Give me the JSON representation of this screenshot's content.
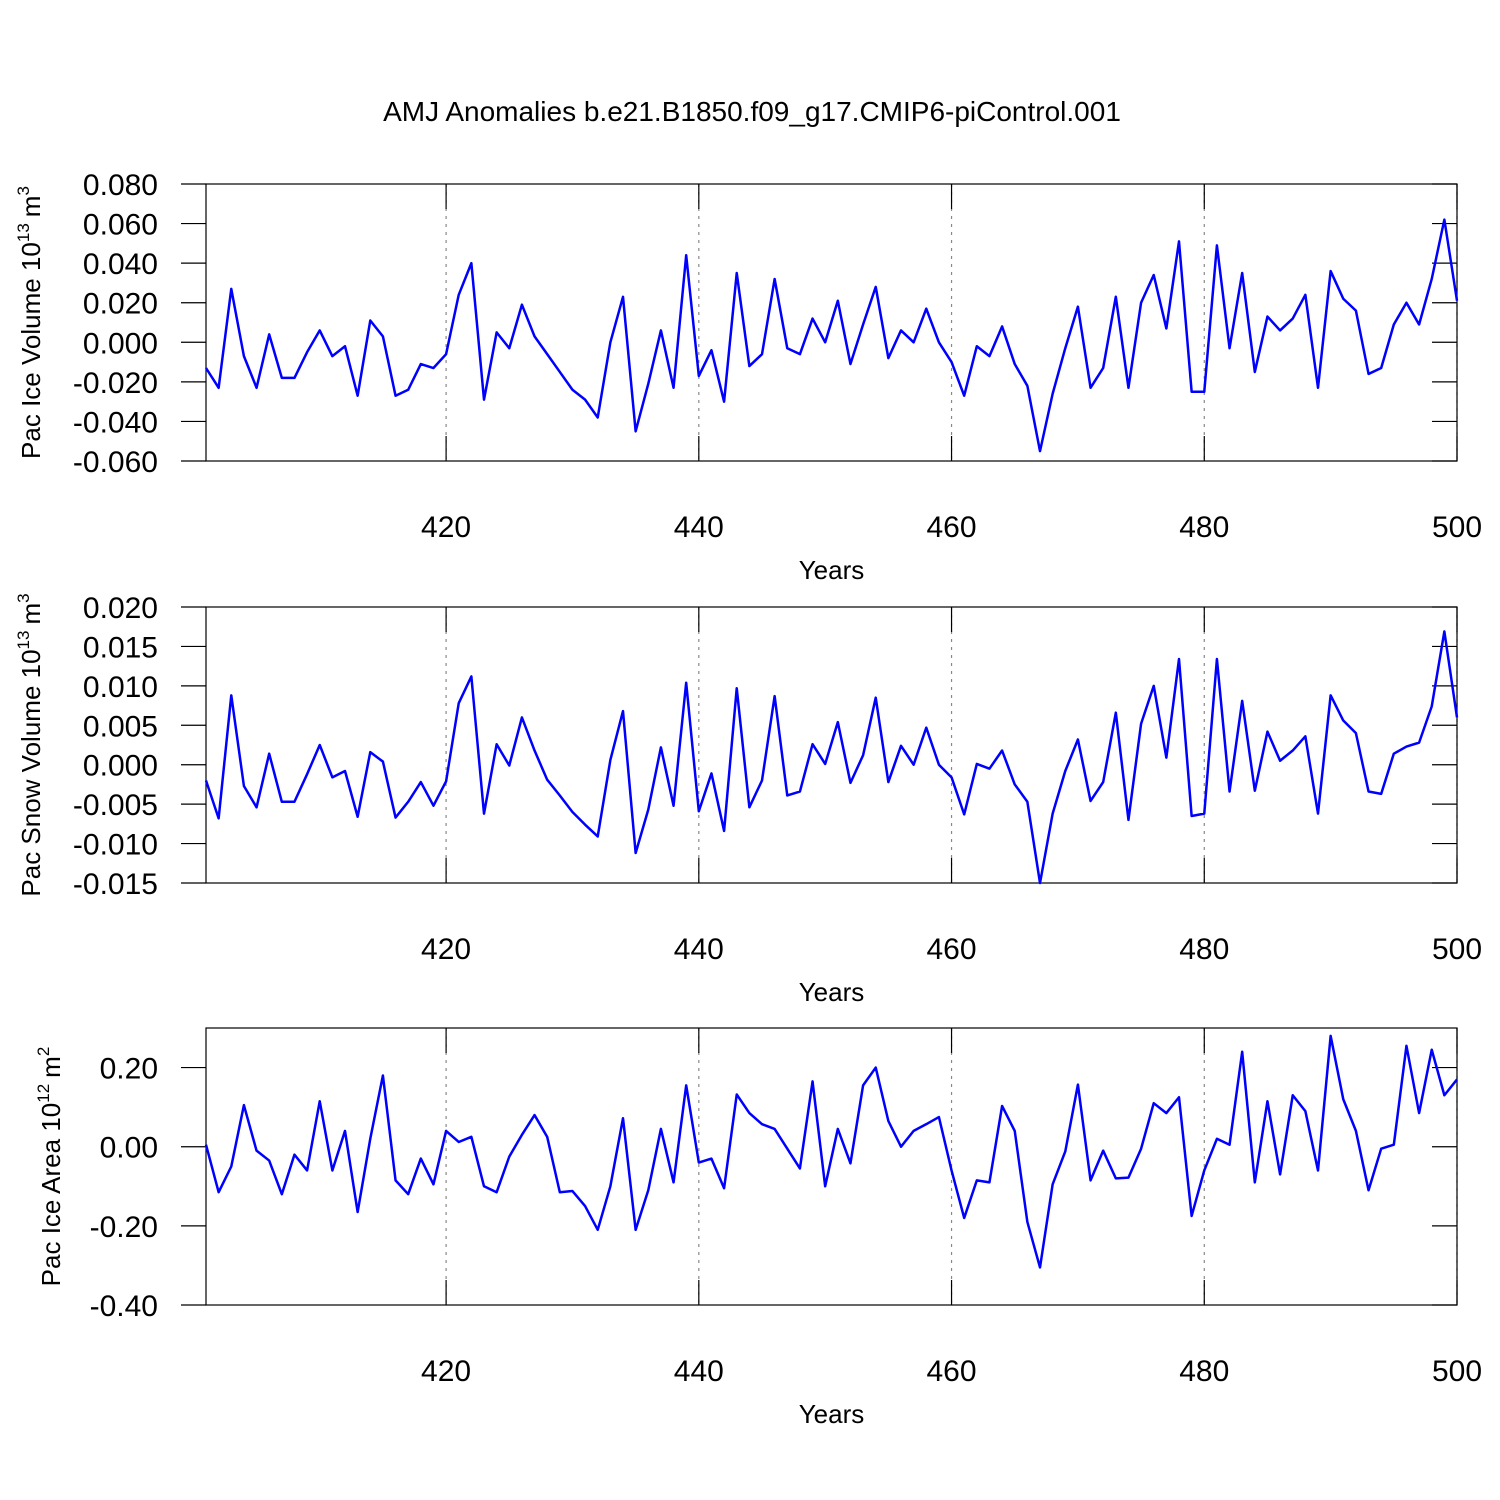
{
  "title": "AMJ Anomalies b.e21.B1850.f09_g17.CMIP6-piControl.001",
  "chart_data": [
    {
      "type": "line",
      "ylabel": "Pac Ice Volume 10",
      "ylabel_exp": "13",
      "ylabel_unit": "m",
      "ylabel_unit_exp": "3",
      "xlabel": "Years",
      "color": "#0000ff",
      "grid": "x",
      "xlim": [
        401,
        500
      ],
      "xticks": [
        420,
        440,
        460,
        480,
        500
      ],
      "ylim": [
        -0.06,
        0.08
      ],
      "yticks": [
        {
          "value": -0.06,
          "label": "-0.060"
        },
        {
          "value": -0.04,
          "label": "-0.040"
        },
        {
          "value": -0.02,
          "label": "-0.020"
        },
        {
          "value": 0,
          "label": "0.000"
        },
        {
          "value": 0.02,
          "label": "0.020"
        },
        {
          "value": 0.04,
          "label": "0.040"
        },
        {
          "value": 0.06,
          "label": "0.060"
        },
        {
          "value": 0.08,
          "label": "0.080"
        }
      ],
      "x": [
        401,
        402,
        403,
        404,
        405,
        406,
        407,
        408,
        409,
        410,
        411,
        412,
        413,
        414,
        415,
        416,
        417,
        418,
        419,
        420,
        421,
        422,
        423,
        424,
        425,
        426,
        427,
        428,
        429,
        430,
        431,
        432,
        433,
        434,
        435,
        436,
        437,
        438,
        439,
        440,
        441,
        442,
        443,
        444,
        445,
        446,
        447,
        448,
        449,
        450,
        451,
        452,
        453,
        454,
        455,
        456,
        457,
        458,
        459,
        460,
        461,
        462,
        463,
        464,
        465,
        466,
        467,
        468,
        469,
        470,
        471,
        472,
        473,
        474,
        475,
        476,
        477,
        478,
        479,
        480,
        481,
        482,
        483,
        484,
        485,
        486,
        487,
        488,
        489,
        490,
        491,
        492,
        493,
        494,
        495,
        496,
        497,
        498,
        499,
        500
      ],
      "values": [
        -0.013,
        -0.023,
        0.027,
        -0.007,
        -0.023,
        0.004,
        -0.018,
        -0.018,
        -0.005,
        0.006,
        -0.007,
        -0.002,
        -0.027,
        0.011,
        0.003,
        -0.027,
        -0.024,
        -0.011,
        -0.013,
        -0.006,
        0.024,
        0.04,
        -0.029,
        0.005,
        -0.003,
        0.019,
        0.003,
        -0.006,
        -0.015,
        -0.024,
        -0.029,
        -0.038,
        0.0,
        0.023,
        -0.045,
        -0.021,
        0.006,
        -0.023,
        0.044,
        -0.017,
        -0.004,
        -0.03,
        0.035,
        -0.012,
        -0.006,
        0.032,
        -0.003,
        -0.006,
        0.012,
        0.0,
        0.021,
        -0.011,
        0.009,
        0.028,
        -0.008,
        0.006,
        0.0,
        0.017,
        0.0,
        -0.01,
        -0.027,
        -0.002,
        -0.007,
        0.008,
        -0.011,
        -0.022,
        -0.055,
        -0.026,
        -0.003,
        0.018,
        -0.023,
        -0.013,
        0.023,
        -0.023,
        0.02,
        0.034,
        0.007,
        0.051,
        -0.025,
        -0.025,
        0.049,
        -0.003,
        0.035,
        -0.015,
        0.013,
        0.006,
        0.012,
        0.024,
        -0.023,
        0.036,
        0.022,
        0.016,
        -0.016,
        -0.013,
        0.009,
        0.02,
        0.009,
        0.032,
        0.062,
        0.021
      ]
    },
    {
      "type": "line",
      "ylabel": "Pac Snow Volume 10",
      "ylabel_exp": "13",
      "ylabel_unit": "m",
      "ylabel_unit_exp": "3",
      "xlabel": "Years",
      "color": "#0000ff",
      "grid": "x",
      "xlim": [
        401,
        500
      ],
      "xticks": [
        420,
        440,
        460,
        480,
        500
      ],
      "ylim": [
        -0.015,
        0.02
      ],
      "yticks": [
        {
          "value": -0.015,
          "label": "-0.015"
        },
        {
          "value": -0.01,
          "label": "-0.010"
        },
        {
          "value": -0.005,
          "label": "-0.005"
        },
        {
          "value": 0,
          "label": "0.000"
        },
        {
          "value": 0.005,
          "label": "0.005"
        },
        {
          "value": 0.01,
          "label": "0.010"
        },
        {
          "value": 0.015,
          "label": "0.015"
        },
        {
          "value": 0.02,
          "label": "0.020"
        }
      ],
      "x": [
        401,
        402,
        403,
        404,
        405,
        406,
        407,
        408,
        409,
        410,
        411,
        412,
        413,
        414,
        415,
        416,
        417,
        418,
        419,
        420,
        421,
        422,
        423,
        424,
        425,
        426,
        427,
        428,
        429,
        430,
        431,
        432,
        433,
        434,
        435,
        436,
        437,
        438,
        439,
        440,
        441,
        442,
        443,
        444,
        445,
        446,
        447,
        448,
        449,
        450,
        451,
        452,
        453,
        454,
        455,
        456,
        457,
        458,
        459,
        460,
        461,
        462,
        463,
        464,
        465,
        466,
        467,
        468,
        469,
        470,
        471,
        472,
        473,
        474,
        475,
        476,
        477,
        478,
        479,
        480,
        481,
        482,
        483,
        484,
        485,
        486,
        487,
        488,
        489,
        490,
        491,
        492,
        493,
        494,
        495,
        496,
        497,
        498,
        499,
        500
      ],
      "values": [
        -0.002,
        -0.0068,
        0.0088,
        -0.0027,
        -0.0054,
        0.0014,
        -0.0047,
        -0.0047,
        -0.0012,
        0.0025,
        -0.0016,
        -0.0008,
        -0.0066,
        0.0016,
        0.0004,
        -0.0067,
        -0.0047,
        -0.0022,
        -0.0052,
        -0.0021,
        0.0078,
        0.0112,
        -0.0062,
        0.0026,
        -0.0001,
        0.006,
        0.0018,
        -0.0019,
        -0.0039,
        -0.006,
        -0.0076,
        -0.0091,
        0.0006,
        0.0068,
        -0.0112,
        -0.0057,
        0.0022,
        -0.0052,
        0.0104,
        -0.0059,
        -0.0011,
        -0.0084,
        0.0097,
        -0.0054,
        -0.002,
        0.0087,
        -0.0039,
        -0.0034,
        0.0026,
        0.0001,
        0.0054,
        -0.0023,
        0.0012,
        0.0085,
        -0.0022,
        0.0024,
        0,
        0.0047,
        0,
        -0.0016,
        -0.0063,
        0.0001,
        -0.0005,
        0.0018,
        -0.0025,
        -0.0047,
        -0.015,
        -0.0062,
        -0.0008,
        0.0032,
        -0.0046,
        -0.0022,
        0.0066,
        -0.007,
        0.0052,
        0.01,
        0.0009,
        0.0134,
        -0.0065,
        -0.0062,
        0.0134,
        -0.0034,
        0.0081,
        -0.0033,
        0.0042,
        0.0005,
        0.0018,
        0.0036,
        -0.0062,
        0.0088,
        0.0056,
        0.004,
        -0.0034,
        -0.0037,
        0.0014,
        0.0023,
        0.0028,
        0.0074,
        0.0169,
        0.006
      ]
    },
    {
      "type": "line",
      "ylabel": "Pac Ice Area 10",
      "ylabel_exp": "12",
      "ylabel_unit": "m",
      "ylabel_unit_exp": "2",
      "xlabel": "Years",
      "color": "#0000ff",
      "grid": "x",
      "xlim": [
        401,
        500
      ],
      "xticks": [
        420,
        440,
        460,
        480,
        500
      ],
      "ylim": [
        -0.4,
        0.3
      ],
      "yticks": [
        {
          "value": -0.4,
          "label": "-0.40"
        },
        {
          "value": -0.2,
          "label": "-0.20"
        },
        {
          "value": 0,
          "label": "0.00"
        },
        {
          "value": 0.2,
          "label": "0.20"
        }
      ],
      "x": [
        401,
        402,
        403,
        404,
        405,
        406,
        407,
        408,
        409,
        410,
        411,
        412,
        413,
        414,
        415,
        416,
        417,
        418,
        419,
        420,
        421,
        422,
        423,
        424,
        425,
        426,
        427,
        428,
        429,
        430,
        431,
        432,
        433,
        434,
        435,
        436,
        437,
        438,
        439,
        440,
        441,
        442,
        443,
        444,
        445,
        446,
        447,
        448,
        449,
        450,
        451,
        452,
        453,
        454,
        455,
        456,
        457,
        458,
        459,
        460,
        461,
        462,
        463,
        464,
        465,
        466,
        467,
        468,
        469,
        470,
        471,
        472,
        473,
        474,
        475,
        476,
        477,
        478,
        479,
        480,
        481,
        482,
        483,
        484,
        485,
        486,
        487,
        488,
        489,
        490,
        491,
        492,
        493,
        494,
        495,
        496,
        497,
        498,
        499,
        500
      ],
      "values": [
        0.005,
        -0.115,
        -0.05,
        0.105,
        -0.01,
        -0.035,
        -0.12,
        -0.02,
        -0.06,
        0.115,
        -0.06,
        0.04,
        -0.165,
        0.02,
        0.18,
        -0.085,
        -0.12,
        -0.03,
        -0.095,
        0.04,
        0.012,
        0.025,
        -0.1,
        -0.115,
        -0.025,
        0.03,
        0.08,
        0.025,
        -0.115,
        -0.112,
        -0.15,
        -0.21,
        -0.1,
        0.072,
        -0.21,
        -0.11,
        0.045,
        -0.09,
        0.155,
        -0.04,
        -0.03,
        -0.105,
        0.132,
        0.085,
        0.057,
        0.045,
        -0.005,
        -0.055,
        0.165,
        -0.1,
        0.045,
        -0.042,
        0.155,
        0.2,
        0.065,
        0,
        0.04,
        0.057,
        0.075,
        -0.06,
        -0.18,
        -0.085,
        -0.09,
        0.103,
        0.04,
        -0.19,
        -0.305,
        -0.095,
        -0.012,
        0.157,
        -0.085,
        -0.01,
        -0.08,
        -0.078,
        -0.005,
        0.11,
        0.085,
        0.125,
        -0.175,
        -0.06,
        0.02,
        0.005,
        0.24,
        -0.09,
        0.115,
        -0.07,
        0.13,
        0.09,
        -0.06,
        0.28,
        0.12,
        0.04,
        -0.11,
        -0.005,
        0.005,
        0.255,
        0.085,
        0.245,
        0.13,
        0.17
      ]
    }
  ]
}
